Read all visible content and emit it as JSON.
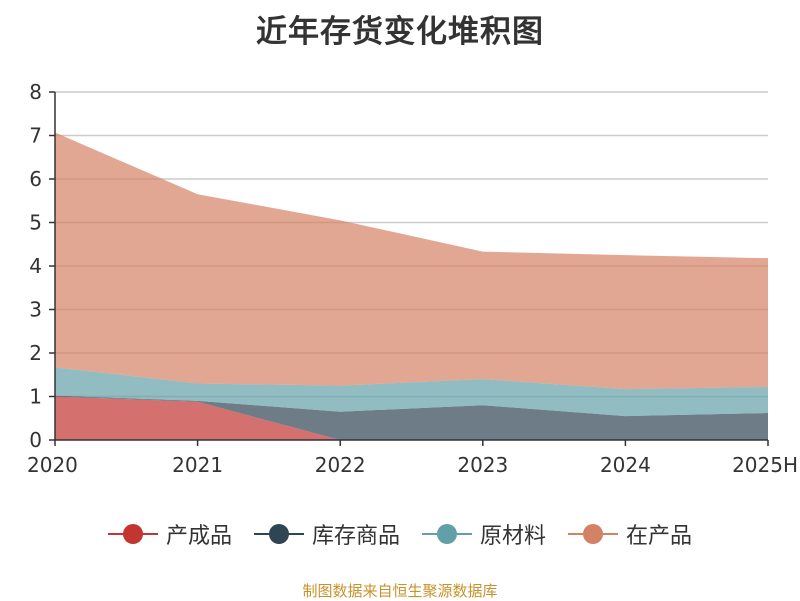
{
  "chart_data": {
    "type": "area",
    "stacked": true,
    "title": "近年存货变化堆积图",
    "x": [
      "2020",
      "2021",
      "2022",
      "2023",
      "2024",
      "2025H"
    ],
    "ylim": [
      0,
      8
    ],
    "yticks": [
      "0",
      "1",
      "2",
      "3",
      "4",
      "5",
      "6",
      "7",
      "8"
    ],
    "grid": true,
    "legend_position": "bottom",
    "series": [
      {
        "name": "产成品",
        "color": "#c23531",
        "values": [
          1.0,
          0.88,
          0.0,
          0.0,
          0.0,
          0.0
        ]
      },
      {
        "name": "库存商品",
        "color": "#2f4554",
        "values": [
          0.02,
          0.02,
          0.65,
          0.8,
          0.55,
          0.62
        ]
      },
      {
        "name": "原材料",
        "color": "#61a0a8",
        "values": [
          0.65,
          0.4,
          0.6,
          0.6,
          0.62,
          0.6
        ]
      },
      {
        "name": "在产品",
        "color": "#d48265",
        "values": [
          5.4,
          4.35,
          3.8,
          2.93,
          3.08,
          2.96
        ]
      }
    ]
  },
  "source_text": "制图数据来自恒生聚源数据库"
}
